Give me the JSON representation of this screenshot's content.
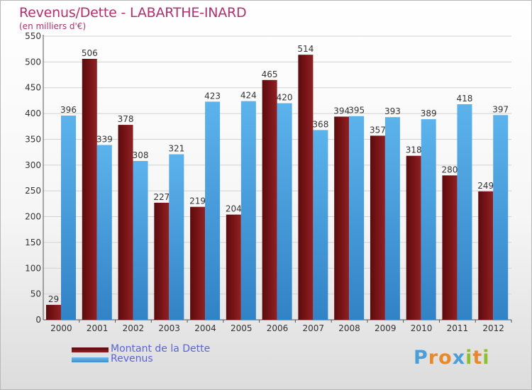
{
  "header": {
    "title": "Revenus/Dette - LABARTHE-INARD",
    "subtitle": "(en milliers d'€)"
  },
  "colors": {
    "dette": "#7a1518",
    "revenus": "#4aa3e2",
    "title": "#b0306f",
    "legend_text": "#5b62d8"
  },
  "chart_data": {
    "type": "bar",
    "categories": [
      "2000",
      "2001",
      "2002",
      "2003",
      "2004",
      "2005",
      "2006",
      "2007",
      "2008",
      "2009",
      "2010",
      "2011",
      "2012"
    ],
    "series": [
      {
        "name": "Montant de la Dette",
        "values": [
          29,
          506,
          378,
          227,
          219,
          204,
          465,
          514,
          394,
          357,
          318,
          280,
          249
        ]
      },
      {
        "name": "Revenus",
        "values": [
          396,
          339,
          308,
          321,
          423,
          424,
          420,
          368,
          395,
          393,
          389,
          418,
          397
        ]
      }
    ],
    "ylim": [
      0,
      550
    ],
    "yticks": [
      0,
      50,
      100,
      150,
      200,
      250,
      300,
      350,
      400,
      450,
      500,
      550
    ],
    "grid": true
  },
  "legend": [
    {
      "label": "Montant de la Dette"
    },
    {
      "label": "Revenus"
    }
  ],
  "logo": {
    "letters": [
      "P",
      "r",
      "o",
      "x",
      "i",
      "t",
      "i"
    ],
    "letter_colors": [
      "#4a9fd8",
      "#e8892c",
      "#e8892c",
      "#4a9fd8",
      "#8dbf2f",
      "#e8892c",
      "#8dbf2f"
    ]
  }
}
